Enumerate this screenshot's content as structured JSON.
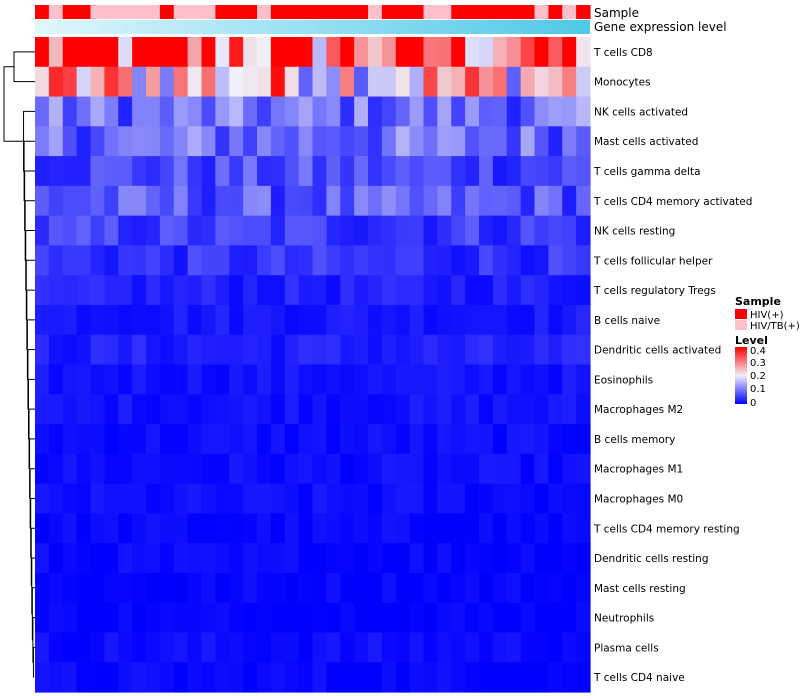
{
  "chart_data": {
    "type": "heatmap",
    "annotation_tracks": [
      "Sample",
      "Gene expression level"
    ],
    "rows": [
      "T cells CD8",
      "Monocytes",
      "NK cells activated",
      "Mast cells activated",
      "T cells gamma delta",
      "T cells CD4 memory activated",
      "NK cells resting",
      "T cells follicular helper",
      "T cells regulatory  Tregs",
      "B cells naive",
      "Dendritic cells activated",
      "Eosinophils",
      "Macrophages M2",
      "B cells memory",
      "Macrophages M1",
      "Macrophages M0",
      "T cells CD4 memory resting",
      "Dendritic cells resting",
      "Mast cells resting",
      "Neutrophils",
      "Plasma cells",
      "T cells CD4 naive"
    ],
    "n_samples": 40,
    "sample_groups": [
      "HIV(+)",
      "HIV/TB(+)",
      "HIV(+)",
      "HIV(+)",
      "HIV/TB(+)",
      "HIV/TB(+)",
      "HIV/TB(+)",
      "HIV/TB(+)",
      "HIV/TB(+)",
      "HIV(+)",
      "HIV/TB(+)",
      "HIV/TB(+)",
      "HIV/TB(+)",
      "HIV(+)",
      "HIV(+)",
      "HIV(+)",
      "HIV/TB(+)",
      "HIV(+)",
      "HIV(+)",
      "HIV(+)",
      "HIV(+)",
      "HIV(+)",
      "HIV(+)",
      "HIV(+)",
      "HIV/TB(+)",
      "HIV(+)",
      "HIV(+)",
      "HIV(+)",
      "HIV/TB(+)",
      "HIV/TB(+)",
      "HIV(+)",
      "HIV(+)",
      "HIV(+)",
      "HIV(+)",
      "HIV(+)",
      "HIV(+)",
      "HIV/TB(+)",
      "HIV(+)",
      "HIV/TB(+)",
      "HIV(+)"
    ],
    "row_means": [
      0.34,
      0.24,
      0.09,
      0.09,
      0.06,
      0.07,
      0.05,
      0.04,
      0.025,
      0.02,
      0.025,
      0.015,
      0.015,
      0.01,
      0.01,
      0.01,
      0.005,
      0.005,
      0.003,
      0.002,
      0.01,
      0.005
    ],
    "color_scale": {
      "min": 0,
      "max": 0.4,
      "low": "#0000ff",
      "mid": "#f0f0f8",
      "high": "#ff0000",
      "mid_value": 0.2
    },
    "legend": {
      "sample_title": "Sample",
      "sample_entries": [
        {
          "label": "HIV(+)",
          "color": "#ff0000"
        },
        {
          "label": "HIV/TB(+)",
          "color": "#ffc0cb"
        }
      ],
      "level_title": "Level",
      "level_ticks": [
        "0.4",
        "0.3",
        "0.2",
        "0.1",
        "0"
      ]
    },
    "gradient_colors": [
      "#e0f7fb",
      "#4fc8e8"
    ],
    "placement": "legend right, row labels right, dendrogram left"
  }
}
